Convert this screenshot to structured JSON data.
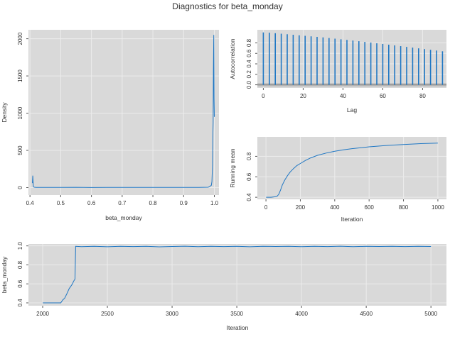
{
  "title": "Diagnostics for beta_monday",
  "colors": {
    "line": "#1f77c4",
    "panel": "#d9d9d9",
    "grid": "#ececec",
    "band": "#b8b8b8"
  },
  "chart_data": [
    {
      "id": "density",
      "type": "line",
      "xlabel": "beta_monday",
      "ylabel": "Density",
      "xlim": [
        0.395,
        1.015
      ],
      "ylim": [
        -100,
        2120
      ],
      "xticks": [
        0.4,
        0.5,
        0.6,
        0.7,
        0.8,
        0.9,
        1.0
      ],
      "xtick_labels": [
        "0.4",
        "0.5",
        "0.6",
        "0.7",
        "0.8",
        "0.9",
        "1.0"
      ],
      "yticks": [
        0,
        500,
        1000,
        1500,
        2000
      ],
      "ytick_labels": [
        "0",
        "500",
        "1000",
        "1500",
        "2000"
      ],
      "series": [
        {
          "x": [
            0.408,
            0.409,
            0.41,
            0.411,
            0.412,
            0.414,
            0.42,
            0.43,
            0.45,
            0.5,
            0.55,
            0.6,
            0.65,
            0.7,
            0.75,
            0.8,
            0.85,
            0.9,
            0.95,
            0.98,
            0.99,
            0.992,
            0.994,
            0.995,
            0.996,
            0.997,
            0.998,
            0.999,
            1.0
          ],
          "y": [
            60,
            160,
            90,
            20,
            10,
            5,
            3,
            2,
            3,
            2,
            4,
            1,
            3,
            2,
            3,
            2,
            2,
            3,
            2,
            5,
            30,
            80,
            300,
            700,
            880,
            1600,
            2050,
            1200,
            950
          ]
        }
      ]
    },
    {
      "id": "acf",
      "type": "bar",
      "xlabel": "Lag",
      "ylabel": "Autocorrelation",
      "xlim": [
        -3,
        92
      ],
      "ylim": [
        -0.06,
        1.05
      ],
      "xticks": [
        0,
        20,
        40,
        60,
        80
      ],
      "xtick_labels": [
        "0",
        "20",
        "40",
        "60",
        "80"
      ],
      "yticks": [
        0.0,
        0.2,
        0.4,
        0.6,
        0.8
      ],
      "ytick_labels": [
        "0.0",
        "0.2",
        "0.4",
        "0.6",
        "0.8"
      ],
      "lags": [
        0,
        3,
        6,
        9,
        12,
        15,
        18,
        21,
        24,
        27,
        30,
        33,
        36,
        39,
        42,
        45,
        48,
        51,
        54,
        57,
        60,
        63,
        66,
        69,
        72,
        75,
        78,
        81,
        84,
        87,
        90
      ],
      "values": [
        1.0,
        0.995,
        0.985,
        0.975,
        0.965,
        0.955,
        0.945,
        0.935,
        0.925,
        0.915,
        0.905,
        0.893,
        0.881,
        0.869,
        0.857,
        0.845,
        0.832,
        0.819,
        0.806,
        0.793,
        0.78,
        0.766,
        0.752,
        0.738,
        0.724,
        0.71,
        0.696,
        0.682,
        0.668,
        0.654,
        0.64
      ],
      "ci_band": [
        -0.03,
        0.03
      ]
    },
    {
      "id": "running_mean",
      "type": "line",
      "xlabel": "Iteration",
      "ylabel": "Running mean",
      "xlim": [
        -50,
        1050
      ],
      "ylim": [
        0.38,
        0.99
      ],
      "xticks": [
        0,
        200,
        400,
        600,
        800,
        1000
      ],
      "xtick_labels": [
        "0",
        "200",
        "400",
        "600",
        "800",
        "1000"
      ],
      "yticks": [
        0.4,
        0.6,
        0.8
      ],
      "ytick_labels": [
        "0.4",
        "0.6",
        "0.8"
      ],
      "series": [
        {
          "x": [
            1,
            30,
            55,
            65,
            75,
            85,
            95,
            110,
            125,
            140,
            160,
            180,
            200,
            230,
            260,
            300,
            350,
            400,
            450,
            500,
            600,
            700,
            800,
            900,
            1000
          ],
          "y": [
            0.4,
            0.4,
            0.405,
            0.41,
            0.43,
            0.47,
            0.52,
            0.57,
            0.61,
            0.645,
            0.68,
            0.71,
            0.73,
            0.76,
            0.785,
            0.81,
            0.832,
            0.85,
            0.864,
            0.875,
            0.893,
            0.906,
            0.916,
            0.924,
            0.93
          ]
        }
      ]
    },
    {
      "id": "trace",
      "type": "line",
      "xlabel": "Iteration",
      "ylabel": "beta_monday",
      "xlim": [
        1890,
        5120
      ],
      "ylim": [
        0.37,
        1.02
      ],
      "xticks": [
        2000,
        2500,
        3000,
        3500,
        4000,
        4500,
        5000
      ],
      "xtick_labels": [
        "2000",
        "2500",
        "3000",
        "3500",
        "4000",
        "4500",
        "5000"
      ],
      "yticks": [
        0.4,
        0.6,
        0.8,
        1.0
      ],
      "ytick_labels": [
        "0.4",
        "0.6",
        "0.8",
        "1.0"
      ],
      "series": [
        {
          "x": [
            2001,
            2050,
            2100,
            2140,
            2155,
            2170,
            2185,
            2195,
            2205,
            2215,
            2230,
            2240,
            2250,
            2252,
            2255,
            2300,
            2400,
            2500,
            2600,
            2700,
            2800,
            2900,
            3000,
            3100,
            3200,
            3300,
            3400,
            3500,
            3600,
            3700,
            3800,
            3900,
            4000,
            4100,
            4200,
            4300,
            4400,
            4500,
            4600,
            4700,
            4800,
            4900,
            5000
          ],
          "y": [
            0.4,
            0.4,
            0.4,
            0.4,
            0.43,
            0.45,
            0.49,
            0.52,
            0.55,
            0.57,
            0.6,
            0.63,
            0.65,
            0.8,
            0.995,
            0.992,
            0.996,
            0.991,
            0.995,
            0.993,
            0.996,
            0.99,
            0.994,
            0.997,
            0.992,
            0.995,
            0.993,
            0.996,
            0.991,
            0.995,
            0.994,
            0.996,
            0.992,
            0.995,
            0.993,
            0.997,
            0.992,
            0.995,
            0.994,
            0.996,
            0.993,
            0.995,
            0.994
          ]
        }
      ]
    }
  ]
}
